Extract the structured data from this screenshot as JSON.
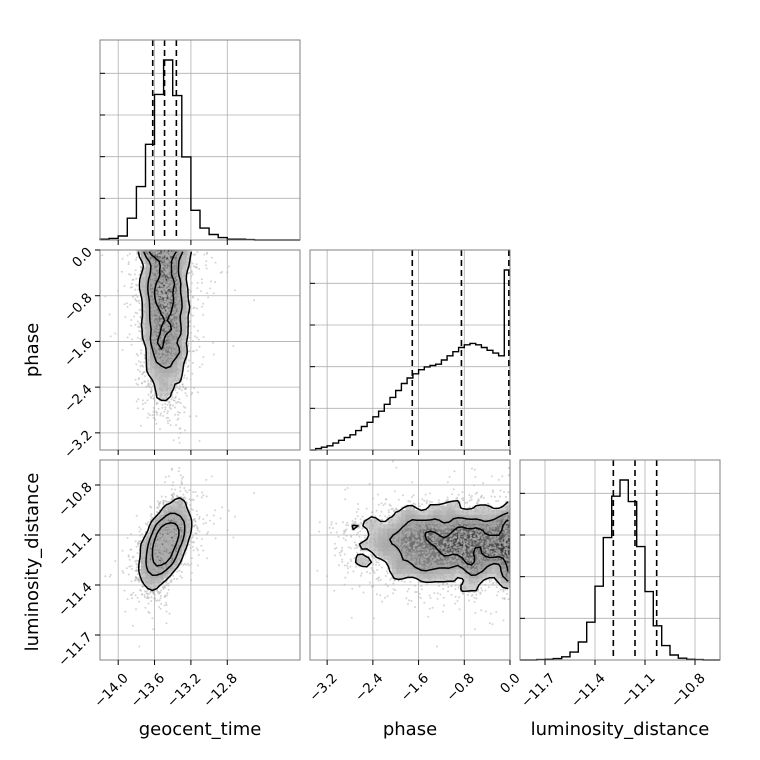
{
  "chart_data": {
    "type": "corner",
    "parameters": [
      "geocent_time",
      "phase",
      "luminosity_distance"
    ],
    "axis_labels": {
      "x": [
        "geocent_time",
        "phase",
        "luminosity_distance"
      ],
      "y_row1": "phase",
      "y_row2": "luminosity_distance"
    },
    "ranges": {
      "geocent_time": [
        -14.2,
        -12.0
      ],
      "phase": [
        -3.5,
        0.0
      ],
      "luminosity_distance": [
        -11.85,
        -10.65
      ]
    },
    "ticks": {
      "geocent_time": [
        -14.0,
        -13.6,
        -13.2,
        -12.8
      ],
      "phase": [
        -3.2,
        -2.4,
        -1.6,
        -0.8,
        0.0
      ],
      "luminosity_distance": [
        -11.7,
        -11.4,
        -11.1,
        -10.8
      ]
    },
    "tick_labels": {
      "geocent_time": [
        "−14.0",
        "−13.6",
        "−13.2",
        "−12.8"
      ],
      "phase": [
        "−3.2",
        "−2.4",
        "−1.6",
        "−0.8",
        "0.0"
      ],
      "luminosity_distance": [
        "−11.7",
        "−11.4",
        "−11.1",
        "−10.8"
      ]
    },
    "quantiles": {
      "geocent_time": [
        -13.62,
        -13.49,
        -13.36
      ],
      "phase": [
        -1.71,
        -0.85,
        -0.02
      ],
      "luminosity_distance": [
        -11.29,
        -11.16,
        -11.03
      ]
    },
    "histograms": {
      "geocent_time": {
        "edges": [
          -14.2,
          -14.1,
          -14.0,
          -13.9,
          -13.8,
          -13.7,
          -13.6,
          -13.5,
          -13.4,
          -13.3,
          -13.2,
          -13.1,
          -13.0,
          -12.9,
          -12.8,
          -12.7,
          -12.6,
          -12.5,
          -12.4,
          -12.3,
          -12.2,
          -12.1,
          -12.0
        ],
        "counts": [
          2,
          4,
          10,
          55,
          135,
          242,
          368,
          455,
          365,
          210,
          75,
          30,
          14,
          6,
          2,
          2,
          1,
          0,
          0,
          0,
          0,
          0
        ]
      },
      "phase": {
        "edges": [
          -3.5,
          -3.4,
          -3.3,
          -3.2,
          -3.1,
          -3.0,
          -2.9,
          -2.8,
          -2.7,
          -2.6,
          -2.5,
          -2.4,
          -2.3,
          -2.2,
          -2.1,
          -2.0,
          -1.9,
          -1.8,
          -1.7,
          -1.6,
          -1.5,
          -1.4,
          -1.3,
          -1.2,
          -1.1,
          -1.0,
          -0.9,
          -0.8,
          -0.7,
          -0.6,
          -0.5,
          -0.4,
          -0.3,
          -0.2,
          -0.1,
          0.0
        ],
        "counts": [
          0,
          1,
          2,
          3,
          5,
          7,
          9,
          11,
          14,
          17,
          20,
          24,
          28,
          33,
          38,
          43,
          48,
          52,
          55,
          58,
          60,
          61,
          62,
          65,
          68,
          71,
          74,
          76,
          77,
          76,
          74,
          72,
          70,
          68,
          130
        ]
      },
      "luminosity_distance": {
        "edges": [
          -11.85,
          -11.8,
          -11.75,
          -11.7,
          -11.65,
          -11.6,
          -11.55,
          -11.5,
          -11.45,
          -11.4,
          -11.35,
          -11.3,
          -11.25,
          -11.2,
          -11.15,
          -11.1,
          -11.05,
          -11.0,
          -10.95,
          -10.9,
          -10.85,
          -10.8,
          -10.75,
          -10.7,
          -10.65
        ],
        "counts": [
          0,
          0,
          1,
          2,
          4,
          9,
          22,
          50,
          105,
          205,
          340,
          455,
          500,
          440,
          315,
          190,
          95,
          40,
          14,
          5,
          2,
          1,
          0,
          0
        ]
      }
    },
    "contour_panels": [
      {
        "x": "geocent_time",
        "y": "phase",
        "peak": [
          -13.49,
          -0.05
        ],
        "note": "contours open toward phase 0.0"
      },
      {
        "x": "geocent_time",
        "y": "luminosity_distance",
        "peak": [
          -13.49,
          -11.16
        ]
      },
      {
        "x": "phase",
        "y": "luminosity_distance",
        "peak": [
          -0.02,
          -11.16
        ],
        "note": "contours open toward phase 0.0"
      }
    ],
    "grid": true,
    "line_color": "#000000",
    "point_color": "#b0b0b0"
  }
}
